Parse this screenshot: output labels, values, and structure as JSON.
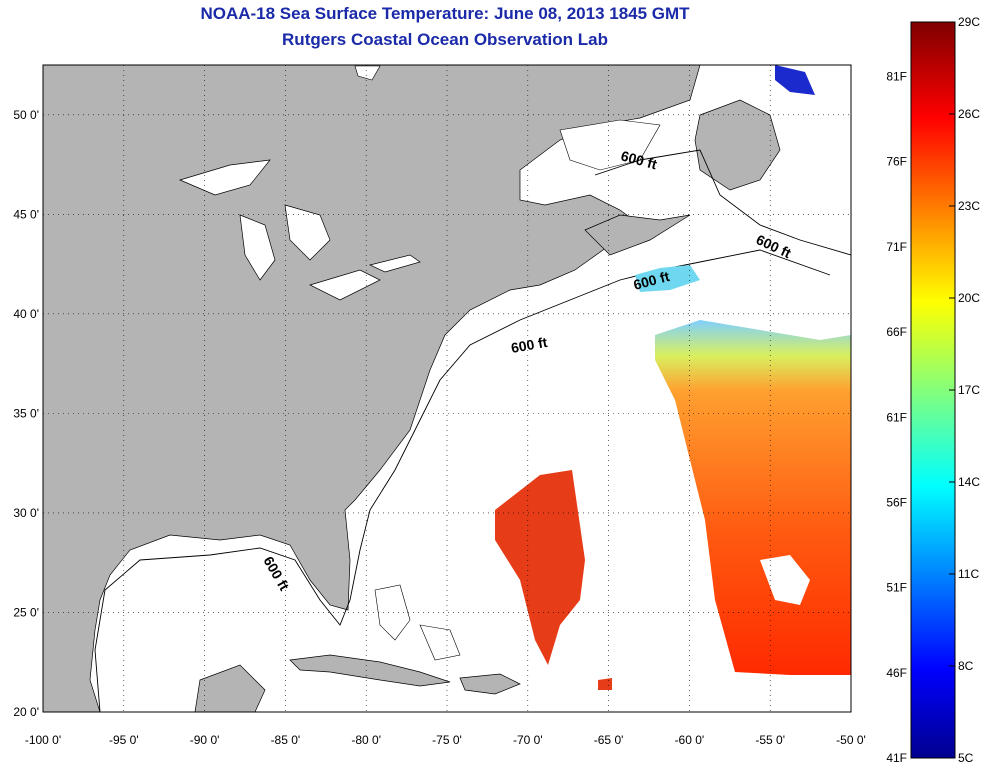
{
  "title": "NOAA-18 Sea Surface Temperature:  June 08, 2013 1845 GMT",
  "subtitle": "Rutgers Coastal Ocean Observation Lab",
  "map": {
    "lon_range": [
      -100,
      -50
    ],
    "lat_range": [
      20,
      52.5
    ],
    "lon_ticks": [
      {
        "value": -100,
        "label": "-100 0'"
      },
      {
        "value": -95,
        "label": "-95 0'"
      },
      {
        "value": -90,
        "label": "-90 0'"
      },
      {
        "value": -85,
        "label": "-85 0'"
      },
      {
        "value": -80,
        "label": "-80 0'"
      },
      {
        "value": -75,
        "label": "-75 0'"
      },
      {
        "value": -70,
        "label": "-70 0'"
      },
      {
        "value": -65,
        "label": "-65 0'"
      },
      {
        "value": -60,
        "label": "-60 0'"
      },
      {
        "value": -55,
        "label": "-55 0'"
      },
      {
        "value": -50,
        "label": "-50 0'"
      }
    ],
    "lat_ticks": [
      {
        "value": 20,
        "label": "20 0'"
      },
      {
        "value": 25,
        "label": "25 0'"
      },
      {
        "value": 30,
        "label": "30 0'"
      },
      {
        "value": 35,
        "label": "35 0'"
      },
      {
        "value": 40,
        "label": "40 0'"
      },
      {
        "value": 45,
        "label": "45 0'"
      },
      {
        "value": 50,
        "label": "50 0'"
      }
    ],
    "grid": "dotted",
    "land_color": "#b4b4b4",
    "isobath_labels": [
      "600 ft",
      "600 ft",
      "600 ft",
      "600 ft",
      "600 ft"
    ]
  },
  "colorbar": {
    "celsius_labels": [
      "29C",
      "26C",
      "23C",
      "20C",
      "17C",
      "14C",
      "11C",
      "8C",
      "5C"
    ],
    "fahrenheit_labels": [
      "81F",
      "76F",
      "71F",
      "66F",
      "61F",
      "56F",
      "51F",
      "46F",
      "41F"
    ],
    "colors": [
      "#7f0000",
      "#ff0000",
      "#ff7f00",
      "#ffff00",
      "#7fff7f",
      "#00ffff",
      "#007fff",
      "#0000ff",
      "#00008f"
    ]
  }
}
